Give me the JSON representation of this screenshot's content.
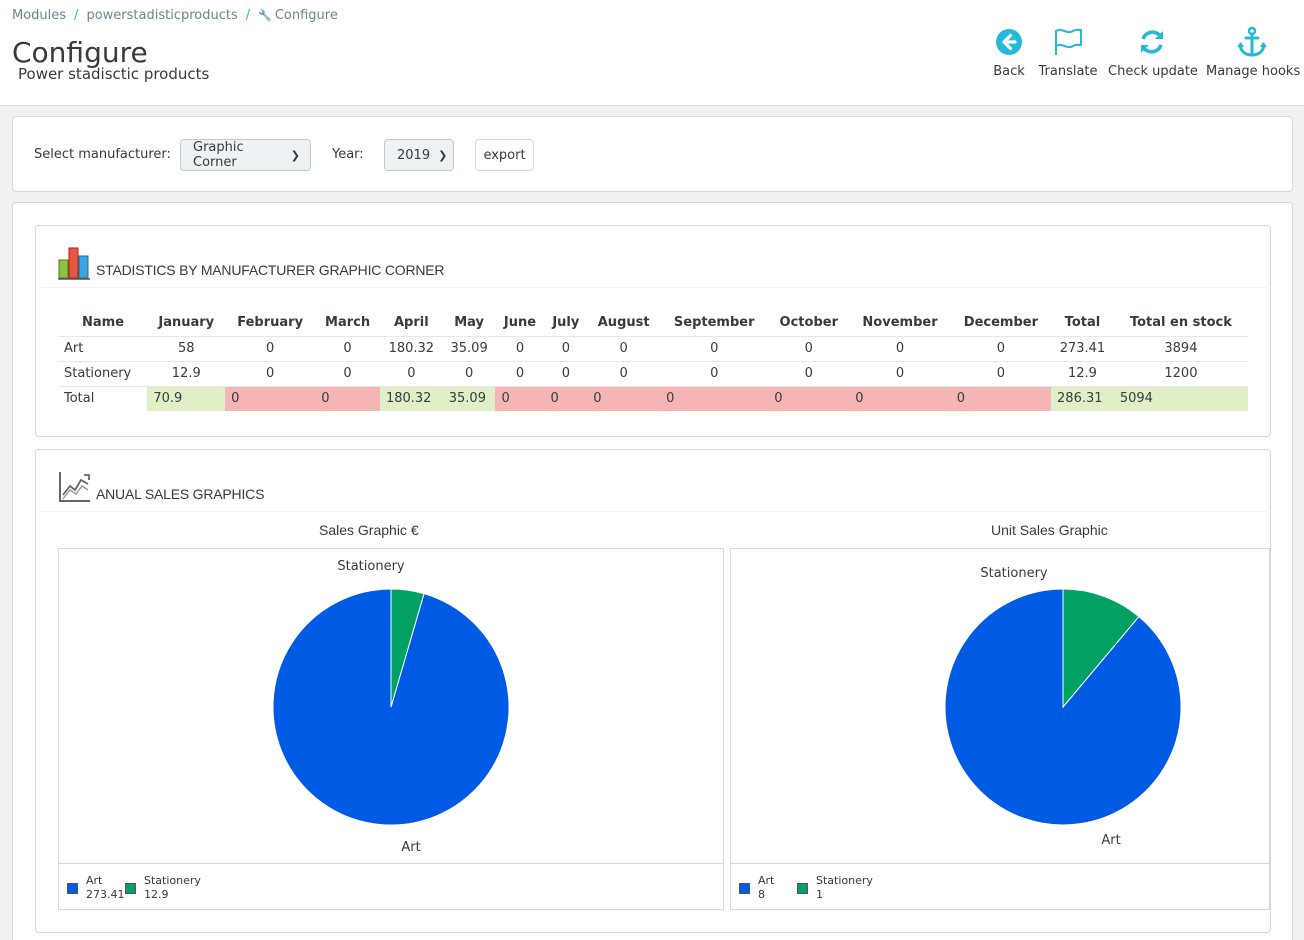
{
  "breadcrumb": {
    "item1": "Modules",
    "item2": "powerstadisticproducts",
    "item3": "Configure"
  },
  "page": {
    "title": "Configure",
    "subtitle": "Power stadisctic products"
  },
  "toolbar": {
    "back": "Back",
    "translate": "Translate",
    "check_update": "Check update",
    "manage_hooks": "Manage hooks"
  },
  "filters": {
    "manufacturer_label": "Select manufacturer:",
    "manufacturer_value": "Graphic Corner",
    "year_label": "Year:",
    "year_value": "2019",
    "export_label": "export"
  },
  "stats": {
    "title": "STADISTICS BY MANUFACTURER GRAPHIC CORNER",
    "headers": [
      "Name",
      "January",
      "February",
      "March",
      "April",
      "May",
      "June",
      "July",
      "August",
      "September",
      "October",
      "November",
      "December",
      "Total",
      "Total en stock"
    ],
    "rows": [
      [
        "Art",
        "58",
        "0",
        "0",
        "180.32",
        "35.09",
        "0",
        "0",
        "0",
        "0",
        "0",
        "0",
        "0",
        "273.41",
        "3894"
      ],
      [
        "Stationery",
        "12.9",
        "0",
        "0",
        "0",
        "0",
        "0",
        "0",
        "0",
        "0",
        "0",
        "0",
        "0",
        "12.9",
        "1200"
      ],
      [
        "Total",
        "70.9",
        "0",
        "0",
        "180.32",
        "35.09",
        "0",
        "0",
        "0",
        "0",
        "0",
        "0",
        "0",
        "286.31",
        "5094"
      ]
    ]
  },
  "graphics": {
    "title": "ANUAL SALES GRAPHICS"
  },
  "colors": {
    "art": "#005be4",
    "stationery": "#00a163",
    "accent": "#25b9d7",
    "total_good": "#dff0c6",
    "total_bad": "#f5b5b4"
  },
  "chart_data": [
    {
      "type": "pie",
      "title": "Sales Graphic €",
      "categories": [
        "Art",
        "Stationery"
      ],
      "values": [
        273.41,
        12.9
      ],
      "legend_values": [
        "273.41",
        "12.9"
      ],
      "legend": "bottom-left"
    },
    {
      "type": "pie",
      "title": "Unit Sales Graphic",
      "categories": [
        "Art",
        "Stationery"
      ],
      "values": [
        8,
        1
      ],
      "legend_values": [
        "8",
        "1"
      ],
      "legend": "bottom-left"
    }
  ]
}
